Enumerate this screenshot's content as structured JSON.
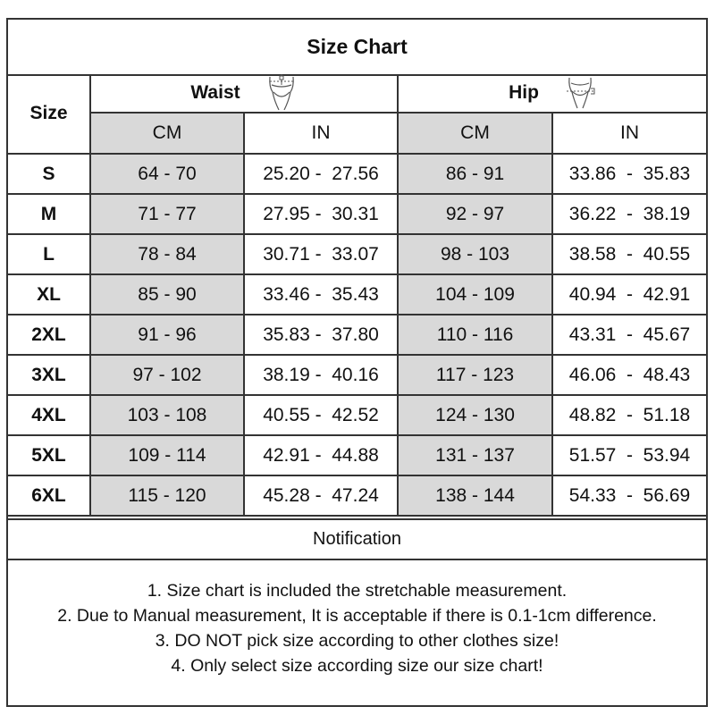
{
  "title": "Size Chart",
  "headers": {
    "size": "Size",
    "waist": "Waist",
    "hip": "Hip",
    "cm": "CM",
    "in": "IN"
  },
  "icons": {
    "waist": "waist-figure-icon",
    "hip": "hip-figure-icon"
  },
  "colors": {
    "cm_column_bg": "#d9d9d9",
    "border": "#333333"
  },
  "rows": [
    {
      "size": "S",
      "waist_cm": "64 - 70",
      "waist_in": "25.20 -  27.56",
      "hip_cm": "86 - 91",
      "hip_in": "33.86  -  35.83"
    },
    {
      "size": "M",
      "waist_cm": "71 - 77",
      "waist_in": "27.95 -  30.31",
      "hip_cm": "92 - 97",
      "hip_in": "36.22  -  38.19"
    },
    {
      "size": "L",
      "waist_cm": "78 - 84",
      "waist_in": "30.71 -  33.07",
      "hip_cm": "98 - 103",
      "hip_in": "38.58  -  40.55"
    },
    {
      "size": "XL",
      "waist_cm": "85 - 90",
      "waist_in": "33.46 -  35.43",
      "hip_cm": "104 - 109",
      "hip_in": "40.94  -  42.91"
    },
    {
      "size": "2XL",
      "waist_cm": "91 - 96",
      "waist_in": "35.83 -  37.80",
      "hip_cm": "110 - 116",
      "hip_in": "43.31  -  45.67"
    },
    {
      "size": "3XL",
      "waist_cm": "97 - 102",
      "waist_in": "38.19 -  40.16",
      "hip_cm": "117 - 123",
      "hip_in": "46.06  -  48.43"
    },
    {
      "size": "4XL",
      "waist_cm": "103 - 108",
      "waist_in": "40.55 -  42.52",
      "hip_cm": "124 - 130",
      "hip_in": "48.82  -  51.18"
    },
    {
      "size": "5XL",
      "waist_cm": "109 - 114",
      "waist_in": "42.91 -  44.88",
      "hip_cm": "131 - 137",
      "hip_in": "51.57  -  53.94"
    },
    {
      "size": "6XL",
      "waist_cm": "115 - 120",
      "waist_in": "45.28 -  47.24",
      "hip_cm": "138 - 144",
      "hip_in": "54.33  -  56.69"
    }
  ],
  "notification": {
    "title": "Notification",
    "notes": [
      "1. Size chart is included the stretchable measurement.",
      "2. Due to Manual measurement, It is acceptable if there is 0.1-1cm difference.",
      "3. DO NOT pick size according to other clothes size!",
      "4. Only select size according size our size chart!"
    ]
  }
}
